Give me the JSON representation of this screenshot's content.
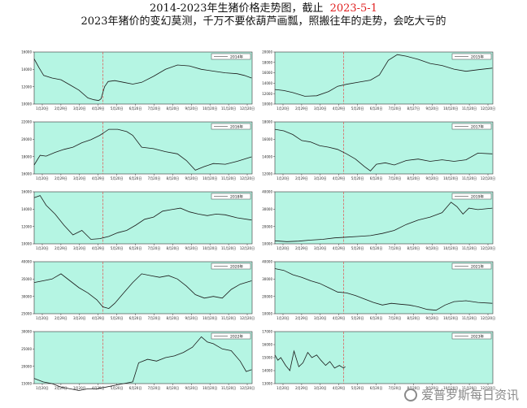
{
  "title": {
    "line1": "2014-2023年生猪价格走势图，截止",
    "date": "2023-5-1",
    "line2": "2023年猪价的变幻莫测，千万不要依葫芦画瓢，照搬往年的走势，会吃大亏的"
  },
  "colors": {
    "plot_bg": "#b5f5e3",
    "line": "#1a1a1a",
    "marker": "#e05050",
    "date_text": "#e02020"
  },
  "watermark": {
    "text": "爱普罗斯每日资讯",
    "icon": "wechat-logo-icon"
  },
  "chart_data": [
    {
      "type": "line",
      "legend": "2014年",
      "ylim": [
        10000,
        16000
      ],
      "yticks": [
        "16000",
        "14000",
        "12000",
        "10000"
      ],
      "x_ticks": [
        "1月20日",
        "2月29日",
        "3月20日",
        "4月29日",
        "5月20日",
        "6月20日",
        "7月20日",
        "8月20日",
        "9月20日",
        "10月20日",
        "11月20日",
        "12月20日"
      ],
      "marker_day": 115,
      "series": [
        {
          "x": [
            0,
            8,
            16,
            30,
            45,
            60,
            75,
            90,
            100,
            108,
            112,
            118,
            124,
            135,
            150,
            165,
            180,
            200,
            220,
            240,
            260,
            280,
            300,
            320,
            340,
            352,
            364
          ],
          "y": [
            15200,
            14200,
            13300,
            13000,
            12800,
            12200,
            11600,
            10700,
            10500,
            10400,
            10600,
            12000,
            12600,
            12700,
            12500,
            12300,
            12500,
            13200,
            14000,
            14500,
            14400,
            14000,
            13800,
            13600,
            13500,
            13300,
            13000
          ]
        }
      ]
    },
    {
      "type": "line",
      "legend": "2015年",
      "ylim": [
        10000,
        20000
      ],
      "yticks": [
        "20000",
        "18000",
        "16000",
        "14000",
        "12000",
        "10000"
      ],
      "x_ticks": [
        "1月20日",
        "2月29日",
        "3月20日",
        "4月29日",
        "5月20日",
        "6月20日",
        "7月20日",
        "8月27日",
        "9月20日",
        "10月20日",
        "11月20日",
        "12月20日"
      ],
      "marker_day": 115,
      "series": [
        {
          "x": [
            0,
            15,
            30,
            50,
            70,
            90,
            105,
            120,
            140,
            160,
            175,
            190,
            205,
            220,
            240,
            260,
            280,
            300,
            320,
            340,
            364
          ],
          "y": [
            12800,
            12600,
            12200,
            11500,
            11600,
            12400,
            13400,
            13800,
            14200,
            14600,
            15600,
            18400,
            19500,
            19200,
            18600,
            17800,
            17400,
            16700,
            16300,
            16600,
            16900
          ]
        }
      ]
    },
    {
      "type": "line",
      "legend": "2016年",
      "ylim": [
        15000,
        22000
      ],
      "yticks": [
        "22000",
        "20000",
        "18000",
        "16000"
      ],
      "x_ticks": [
        "1月20日",
        "2月29日",
        "3月20日",
        "4月29日",
        "5月20日",
        "6月20日",
        "7月20日",
        "8月20日",
        "9月20日",
        "10月20日",
        "11月20日",
        "12月20日"
      ],
      "marker_day": 115,
      "series": [
        {
          "x": [
            0,
            10,
            20,
            35,
            50,
            65,
            80,
            95,
            110,
            125,
            140,
            155,
            165,
            180,
            200,
            220,
            240,
            255,
            270,
            285,
            300,
            320,
            340,
            364
          ],
          "y": [
            16200,
            17500,
            17400,
            17900,
            18300,
            18600,
            19200,
            19600,
            20200,
            21000,
            21000,
            20700,
            20200,
            18600,
            18400,
            18000,
            17700,
            16800,
            15500,
            16000,
            16400,
            16300,
            16700,
            17300
          ]
        }
      ]
    },
    {
      "type": "line",
      "legend": "2017年",
      "ylim": [
        12000,
        19000
      ],
      "yticks": [
        "18000",
        "16000",
        "14000",
        "12000"
      ],
      "x_ticks": [
        "1月20日",
        "2月29日",
        "3月20日",
        "4月29日",
        "5月20日",
        "6月20日",
        "7月20日",
        "8月20日",
        "9月20日",
        "10月20日",
        "11月20日",
        "12月20日"
      ],
      "marker_day": 115,
      "series": [
        {
          "x": [
            0,
            15,
            30,
            45,
            60,
            75,
            90,
            105,
            120,
            135,
            150,
            160,
            170,
            185,
            200,
            220,
            240,
            260,
            280,
            300,
            320,
            340,
            364
          ],
          "y": [
            18000,
            17800,
            17300,
            16500,
            16300,
            15800,
            15600,
            15300,
            14700,
            14000,
            13000,
            12400,
            13300,
            13500,
            13200,
            13800,
            14000,
            13700,
            13900,
            13700,
            13900,
            14800,
            14700
          ]
        }
      ]
    },
    {
      "type": "line",
      "legend": "2018年",
      "ylim": [
        9000,
        16000
      ],
      "yticks": [
        "16000",
        "14000",
        "12000",
        "10000"
      ],
      "x_ticks": [
        "1月20日",
        "2月29日",
        "3月20日",
        "4月29日",
        "5月20日",
        "6月20日",
        "7月20日",
        "8月20日",
        "9月20日",
        "10月20日",
        "11月20日",
        "12月20日"
      ],
      "marker_day": 115,
      "series": [
        {
          "x": [
            0,
            10,
            20,
            35,
            50,
            65,
            80,
            95,
            110,
            125,
            140,
            155,
            170,
            185,
            200,
            215,
            230,
            245,
            260,
            275,
            290,
            305,
            320,
            340,
            364
          ],
          "y": [
            15200,
            15500,
            14200,
            13000,
            11500,
            10200,
            10800,
            9600,
            9700,
            10000,
            10500,
            10800,
            11500,
            12300,
            12600,
            13400,
            13600,
            13800,
            13300,
            13000,
            12800,
            13000,
            12900,
            12500,
            12200
          ]
        }
      ]
    },
    {
      "type": "line",
      "legend": "2019年",
      "ylim": [
        10000,
        45000
      ],
      "yticks": [
        "40000",
        "30000",
        "20000",
        "10000"
      ],
      "x_ticks": [
        "1月20日",
        "2月29日",
        "3月20日",
        "4月29日",
        "5月20日",
        "6月20日",
        "7月20日",
        "8月20日",
        "9月20日",
        "10月20日",
        "11月20日",
        "12月20日"
      ],
      "marker_day": 115,
      "series": [
        {
          "x": [
            0,
            20,
            40,
            60,
            80,
            100,
            120,
            140,
            160,
            180,
            200,
            220,
            240,
            260,
            280,
            295,
            305,
            315,
            325,
            340,
            364
          ],
          "y": [
            12000,
            11500,
            11800,
            12500,
            13000,
            14000,
            14500,
            15000,
            15500,
            17000,
            19000,
            23000,
            26000,
            28000,
            31000,
            38000,
            35000,
            30000,
            34000,
            33000,
            34000
          ]
        }
      ]
    },
    {
      "type": "line",
      "legend": "2020年",
      "ylim": [
        25000,
        40000
      ],
      "yticks": [
        "40000",
        "35000",
        "30000",
        "25000"
      ],
      "x_ticks": [
        "1月20日",
        "2月29日",
        "3月20日",
        "4月29日",
        "5月20日",
        "6月20日",
        "7月20日",
        "8月20日",
        "9月20日",
        "10月20日",
        "11月20日",
        "12月20日"
      ],
      "marker_day": 115,
      "series": [
        {
          "x": [
            0,
            15,
            30,
            45,
            60,
            75,
            90,
            105,
            115,
            125,
            135,
            150,
            165,
            180,
            195,
            210,
            225,
            240,
            255,
            270,
            285,
            300,
            315,
            330,
            345,
            364
          ],
          "y": [
            34000,
            34500,
            35000,
            36500,
            34500,
            32500,
            31000,
            29000,
            27000,
            26500,
            28000,
            31000,
            34000,
            36500,
            36000,
            35500,
            36000,
            35000,
            33000,
            30500,
            29500,
            30000,
            29500,
            32000,
            33500,
            34500
          ]
        }
      ]
    },
    {
      "type": "line",
      "legend": "2021年",
      "ylim": [
        10000,
        40000
      ],
      "yticks": [
        "40000",
        "30000",
        "20000",
        "10000"
      ],
      "x_ticks": [
        "1月20日",
        "2月29日",
        "3月20日",
        "4月29日",
        "5月20日",
        "6月20日",
        "7月20日",
        "8月20日",
        "9月20日",
        "10月20日",
        "11月20日",
        "12月20日"
      ],
      "marker_day": 115,
      "series": [
        {
          "x": [
            0,
            15,
            30,
            45,
            60,
            75,
            90,
            105,
            120,
            135,
            150,
            165,
            180,
            195,
            210,
            225,
            240,
            255,
            270,
            285,
            300,
            320,
            340,
            364
          ],
          "y": [
            36000,
            35000,
            32500,
            31000,
            29000,
            27500,
            25000,
            22500,
            22000,
            20500,
            18500,
            16500,
            15000,
            16000,
            15500,
            15000,
            14000,
            12500,
            12000,
            15000,
            17000,
            17500,
            16500,
            16000
          ]
        }
      ]
    },
    {
      "type": "line",
      "legend": "2022年",
      "ylim": [
        15000,
        30000
      ],
      "yticks": [
        "30000",
        "25000",
        "20000",
        "15000"
      ],
      "x_ticks": [
        "1月20日",
        "2月29日",
        "3月20日",
        "4月29日",
        "5月20日",
        "6月20日",
        "7月20日",
        "8月20日",
        "9月20日",
        "10月20日",
        "11月20日",
        "12月20日"
      ],
      "marker_day": 115,
      "series": [
        {
          "x": [
            0,
            15,
            30,
            45,
            60,
            75,
            90,
            105,
            120,
            135,
            150,
            165,
            175,
            190,
            205,
            220,
            235,
            250,
            265,
            280,
            290,
            300,
            315,
            330,
            345,
            355,
            364
          ],
          "y": [
            16500,
            15500,
            15000,
            14000,
            13500,
            13000,
            13500,
            13500,
            14000,
            14500,
            15000,
            15500,
            21000,
            22000,
            21500,
            22500,
            23000,
            24000,
            25500,
            28500,
            27000,
            26500,
            25000,
            24500,
            21500,
            18500,
            19000
          ]
        }
      ]
    },
    {
      "type": "line",
      "legend": "2023年",
      "ylim": [
        13000,
        17000
      ],
      "yticks": [
        "17000",
        "16000",
        "15000",
        "14000",
        "13000"
      ],
      "x_ticks": [
        "1月20日",
        "2月29日",
        "3月20日",
        "4月29日",
        "5月20日",
        "6月20日",
        "7月20日",
        "8月20日",
        "9月20日",
        "10月20日",
        "11月20日",
        "12月20日"
      ],
      "marker_day": 115,
      "series": [
        {
          "x": [
            0,
            5,
            10,
            18,
            25,
            32,
            40,
            47,
            55,
            62,
            70,
            77,
            85,
            92,
            100,
            108,
            115,
            118
          ],
          "y": [
            15200,
            14800,
            15000,
            14400,
            14000,
            15500,
            14300,
            14600,
            15400,
            15000,
            15200,
            14800,
            14400,
            14700,
            14200,
            14400,
            14200,
            14300
          ]
        }
      ]
    }
  ]
}
